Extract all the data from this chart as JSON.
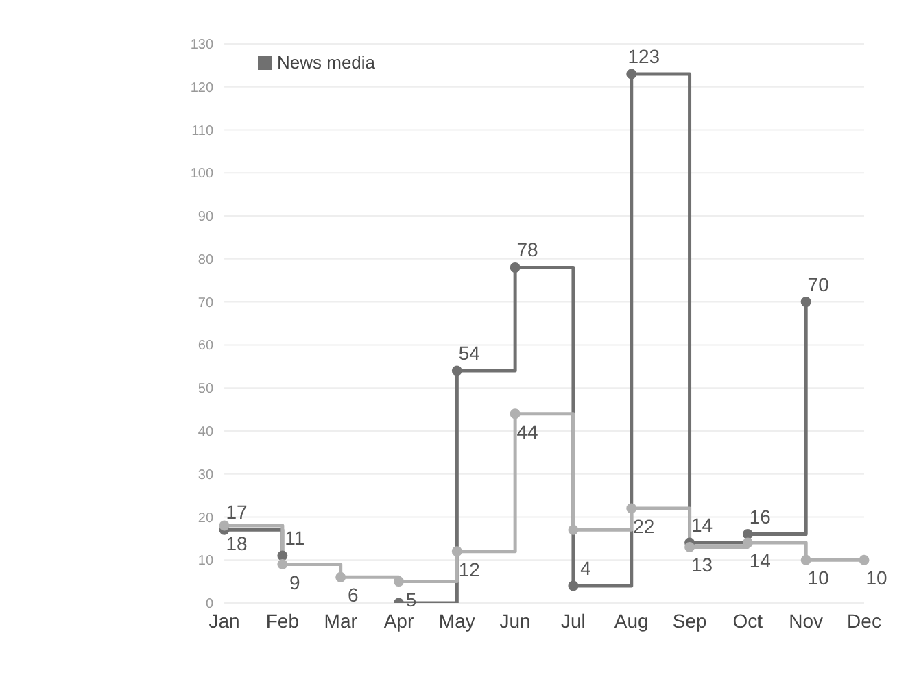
{
  "chart_data": {
    "type": "step",
    "categories": [
      "Jan",
      "Feb",
      "Mar",
      "Apr",
      "May",
      "Jun",
      "Jul",
      "Aug",
      "Sep",
      "Oct",
      "Nov",
      "Dec"
    ],
    "series": [
      {
        "name": "News media",
        "color": "#707070",
        "values": [
          17,
          11,
          null,
          0,
          54,
          78,
          4,
          123,
          14,
          16,
          70,
          null
        ],
        "value_labels": [
          "17",
          "11",
          null,
          null,
          "54",
          "78",
          "4",
          "123",
          "14",
          "16",
          "70",
          null
        ]
      },
      {
        "color": "#b0b0b0",
        "values": [
          18,
          9,
          6,
          5,
          12,
          44,
          17,
          22,
          13,
          14,
          10,
          10
        ],
        "value_labels": [
          "18",
          "9",
          "6",
          "5",
          "12",
          "44",
          null,
          "22",
          "13",
          "14",
          "10",
          "10"
        ]
      }
    ],
    "ylim": [
      0,
      130
    ],
    "yticks": [
      0,
      10,
      20,
      30,
      40,
      50,
      60,
      70,
      80,
      90,
      100,
      110,
      120,
      130
    ],
    "grid": "y",
    "legend": "top left",
    "marker": "circle",
    "line_style": "solid"
  }
}
